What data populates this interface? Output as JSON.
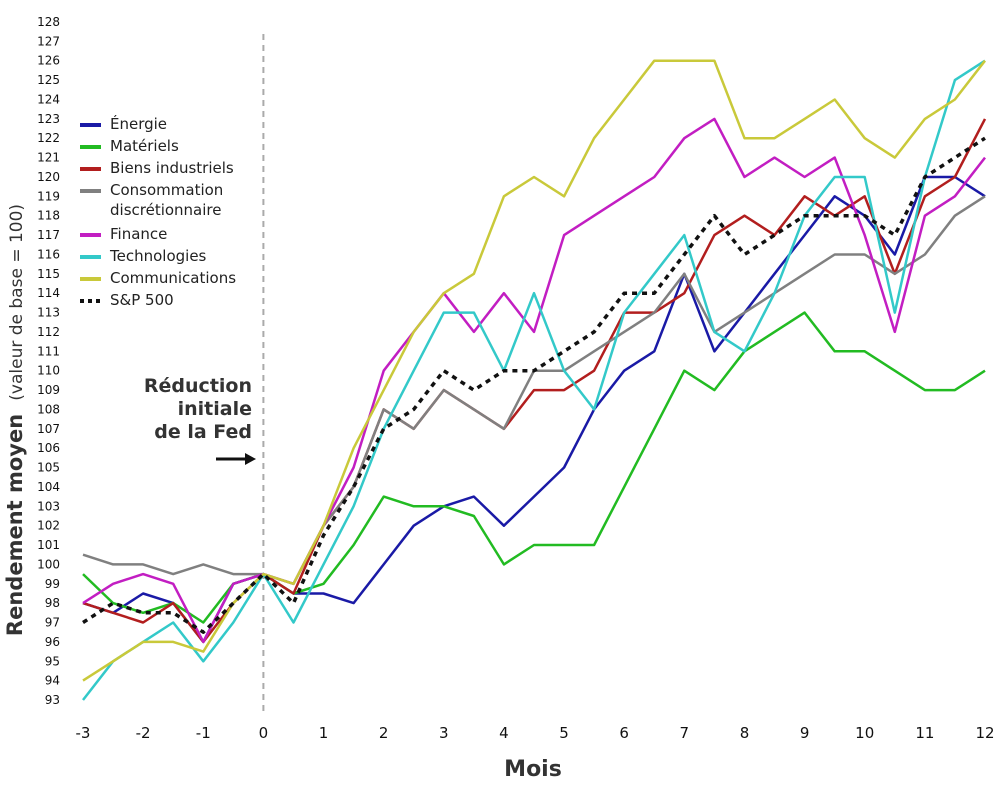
{
  "chart_data": {
    "type": "line",
    "xlabel": "Mois",
    "ylabel": "Rendement moyen",
    "ylabel_suffix": "(valeur de base = 100)",
    "xlim": [
      -3,
      12
    ],
    "ylim": [
      93,
      128
    ],
    "x_ticks": [
      "-3",
      "-2",
      "-1",
      "0",
      "1",
      "2",
      "3",
      "4",
      "5",
      "6",
      "7",
      "8",
      "9",
      "10",
      "11",
      "12"
    ],
    "y_ticks": [
      "93",
      "94",
      "95",
      "96",
      "97",
      "98",
      "99",
      "100",
      "101",
      "102",
      "103",
      "104",
      "105",
      "106",
      "107",
      "108",
      "109",
      "110",
      "111",
      "112",
      "113",
      "114",
      "115",
      "116",
      "117",
      "118",
      "119",
      "120",
      "121",
      "122",
      "123",
      "124",
      "125",
      "126",
      "127",
      "128"
    ],
    "grid": false,
    "legend_position": "top-left",
    "annotation": {
      "lines": [
        "Réduction",
        "initiale",
        "de la Fed"
      ],
      "x": 0
    },
    "x": [
      -3,
      -2.5,
      -2,
      -1.5,
      -1,
      -0.5,
      0,
      0.5,
      1,
      1.5,
      2,
      2.5,
      3,
      3.5,
      4,
      4.5,
      5,
      5.5,
      6,
      6.5,
      7,
      7.5,
      8,
      8.5,
      9,
      9.5,
      10,
      10.5,
      11,
      11.5,
      12
    ],
    "series": [
      {
        "name": "Énergie",
        "color": "#1a1aa6",
        "dash": false,
        "values": [
          98,
          97.5,
          98.5,
          98,
          96,
          99,
          99.5,
          98.5,
          98.5,
          98,
          100,
          102,
          103,
          103.5,
          102,
          103.5,
          105,
          108,
          110,
          111,
          115,
          111,
          113,
          115,
          117,
          119,
          118,
          116,
          120,
          120,
          119
        ]
      },
      {
        "name": "Matériels",
        "color": "#22bb22",
        "dash": false,
        "values": [
          99.5,
          98,
          97.5,
          98,
          97,
          99,
          99.5,
          98.5,
          99,
          101,
          103.5,
          103,
          103,
          102.5,
          100,
          101,
          101,
          101,
          104,
          107,
          110,
          109,
          111,
          112,
          113,
          111,
          111,
          110,
          109,
          109,
          110
        ]
      },
      {
        "name": "Biens industriels",
        "color": "#b21e1e",
        "dash": false,
        "values": [
          98,
          97.5,
          97,
          98,
          96,
          98,
          99.5,
          98.5,
          102,
          104,
          108,
          107,
          109,
          108,
          107,
          109,
          109,
          110,
          113,
          113,
          114,
          117,
          118,
          117,
          119,
          118,
          119,
          115,
          119,
          120,
          123
        ]
      },
      {
        "name": "Consommation discrétionnaire",
        "color": "#808080",
        "dash": false,
        "values": [
          100.5,
          100,
          100,
          99.5,
          100,
          99.5,
          99.5,
          99,
          102,
          104,
          108,
          107,
          109,
          108,
          107,
          110,
          110,
          111,
          112,
          113,
          115,
          112,
          113,
          114,
          115,
          116,
          116,
          115,
          116,
          118,
          119
        ]
      },
      {
        "name": "Finance",
        "color": "#c21ec2",
        "dash": false,
        "values": [
          98,
          99,
          99.5,
          99,
          96,
          99,
          99.5,
          99,
          102,
          105,
          110,
          112,
          114,
          112,
          114,
          112,
          117,
          118,
          119,
          120,
          122,
          123,
          120,
          121,
          120,
          121,
          117,
          112,
          118,
          119,
          121
        ]
      },
      {
        "name": "Technologies",
        "color": "#33c9c9",
        "dash": false,
        "values": [
          93,
          95,
          96,
          97,
          95,
          97,
          99.5,
          97,
          100,
          103,
          107,
          110,
          113,
          113,
          110,
          114,
          110,
          108,
          113,
          115,
          117,
          112,
          111,
          114,
          118,
          120,
          120,
          113,
          120,
          125,
          126
        ]
      },
      {
        "name": "Communications",
        "color": "#c9c93a",
        "dash": false,
        "values": [
          94,
          95,
          96,
          96,
          95.5,
          98,
          99.5,
          99,
          102,
          106,
          109,
          112,
          114,
          115,
          119,
          120,
          119,
          122,
          124,
          126,
          126,
          126,
          122,
          122,
          123,
          124,
          122,
          121,
          123,
          124,
          126
        ]
      },
      {
        "name": "S&P 500",
        "color": "#111111",
        "dash": true,
        "values": [
          97,
          98,
          97.5,
          97.5,
          96.5,
          98,
          99.5,
          98,
          101.5,
          104,
          107,
          108,
          110,
          109,
          110,
          110,
          111,
          112,
          114,
          114,
          116,
          118,
          116,
          117,
          118,
          118,
          118,
          117,
          120,
          121,
          122
        ]
      }
    ]
  }
}
